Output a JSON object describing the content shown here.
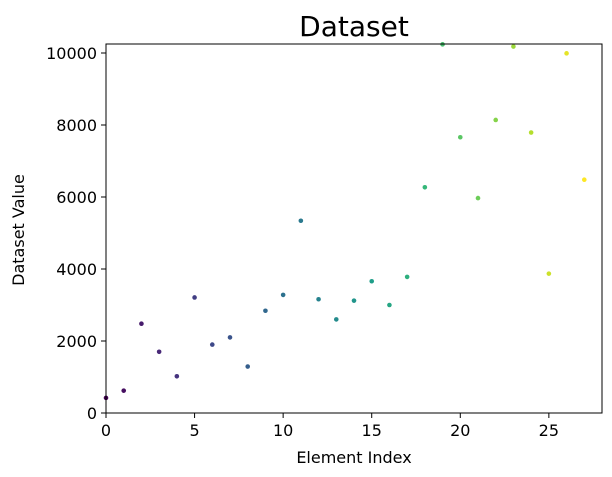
{
  "chart_data": {
    "type": "scatter",
    "title": "Dataset",
    "xlabel": "Element Index",
    "ylabel": "Dataset Value",
    "xlim": [
      0,
      28
    ],
    "ylim": [
      0,
      10250
    ],
    "xticks": [
      0,
      5,
      10,
      15,
      20,
      25
    ],
    "yticks": [
      0,
      2000,
      4000,
      6000,
      8000,
      10000
    ],
    "colormap": "viridis",
    "grid": false,
    "x": [
      0,
      1,
      2,
      3,
      4,
      5,
      6,
      7,
      8,
      9,
      10,
      11,
      12,
      13,
      14,
      15,
      16,
      17,
      18,
      19,
      20,
      21,
      22,
      23,
      24,
      25,
      26,
      27
    ],
    "y": [
      420,
      620,
      2480,
      1700,
      1020,
      3210,
      1900,
      2100,
      1290,
      2840,
      3280,
      5340,
      3160,
      2600,
      3120,
      3660,
      3000,
      3780,
      6270,
      10240,
      7660,
      5970,
      8140,
      10180,
      7790,
      3870,
      9990,
      6480
    ]
  }
}
